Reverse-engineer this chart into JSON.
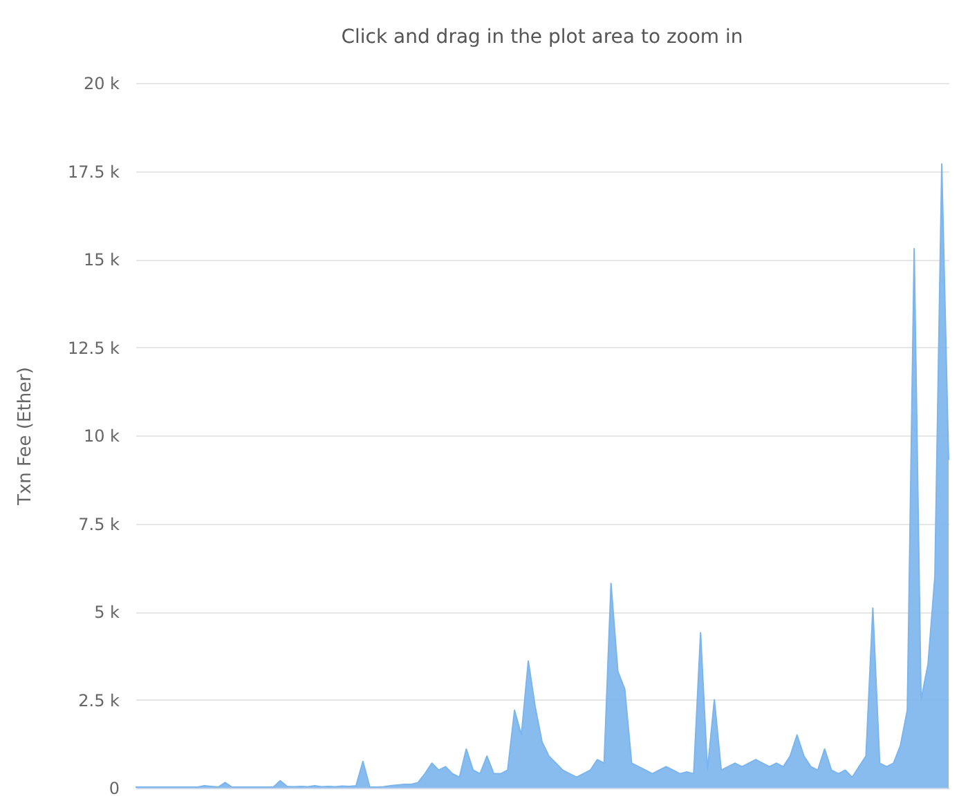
{
  "chart_data": {
    "type": "area",
    "subtitle": "Click and drag in the plot area to zoom in",
    "ylabel": "Txn Fee (Ether)",
    "categories": [
      null,
      null,
      null,
      null,
      null,
      null,
      null,
      null,
      null,
      null,
      null,
      null,
      null,
      null,
      null,
      null,
      null,
      null,
      null,
      null,
      null,
      null,
      null,
      null,
      null,
      null,
      null,
      null,
      null,
      null,
      null,
      null,
      null,
      null,
      null,
      null,
      null,
      null,
      null,
      null,
      null,
      null,
      null,
      null,
      null,
      null,
      null,
      null,
      null,
      null,
      null,
      null,
      null,
      null,
      null,
      null,
      null,
      null,
      null,
      null,
      null,
      null,
      null,
      null,
      null,
      null,
      null,
      null,
      null,
      null,
      null,
      null,
      null,
      null,
      null,
      null,
      null,
      null,
      null,
      null,
      null,
      null,
      null,
      null,
      null,
      null,
      null,
      null,
      null,
      null,
      null,
      null,
      null,
      null,
      null,
      null,
      null,
      null,
      null,
      null,
      null,
      null,
      null,
      null,
      null,
      null,
      null,
      null,
      null,
      null,
      null,
      null,
      null,
      null,
      null,
      null,
      null,
      null,
      null
    ],
    "series": [
      {
        "color": "#7cb5ec",
        "values": [
          20,
          20,
          20,
          20,
          20,
          20,
          20,
          20,
          20,
          20,
          60,
          40,
          20,
          150,
          20,
          20,
          20,
          20,
          20,
          20,
          20,
          200,
          40,
          30,
          40,
          30,
          60,
          30,
          40,
          30,
          50,
          40,
          60,
          750,
          20,
          20,
          30,
          60,
          80,
          100,
          100,
          150,
          400,
          700,
          500,
          600,
          400,
          300,
          1100,
          500,
          400,
          900,
          400,
          400,
          500,
          2200,
          1500,
          3600,
          2300,
          1300,
          900,
          700,
          500,
          400,
          300,
          400,
          500,
          800,
          700,
          5800,
          3300,
          2800,
          700,
          600,
          500,
          400,
          500,
          600,
          500,
          400,
          450,
          400,
          4400,
          500,
          2500,
          500,
          600,
          700,
          600,
          700,
          800,
          700,
          600,
          700,
          600,
          900,
          1500,
          900,
          600,
          500,
          1100,
          500,
          400,
          500,
          300,
          600,
          900,
          5100,
          700,
          600,
          700,
          1200,
          2200,
          15300,
          2500,
          3500,
          6000,
          17700,
          9300
        ]
      }
    ],
    "ylim": [
      0,
      20000
    ],
    "yticks": [
      {
        "value": 0,
        "label": "0"
      },
      {
        "value": 2500,
        "label": "2.5 k"
      },
      {
        "value": 5000,
        "label": "5 k"
      },
      {
        "value": 7500,
        "label": "7.5 k"
      },
      {
        "value": 10000,
        "label": "10 k"
      },
      {
        "value": 12500,
        "label": "12.5 k"
      },
      {
        "value": 15000,
        "label": "15 k"
      },
      {
        "value": 17500,
        "label": "17.5 k"
      },
      {
        "value": 20000,
        "label": "20 k"
      }
    ],
    "grid": "y",
    "tick_labels": "y"
  }
}
